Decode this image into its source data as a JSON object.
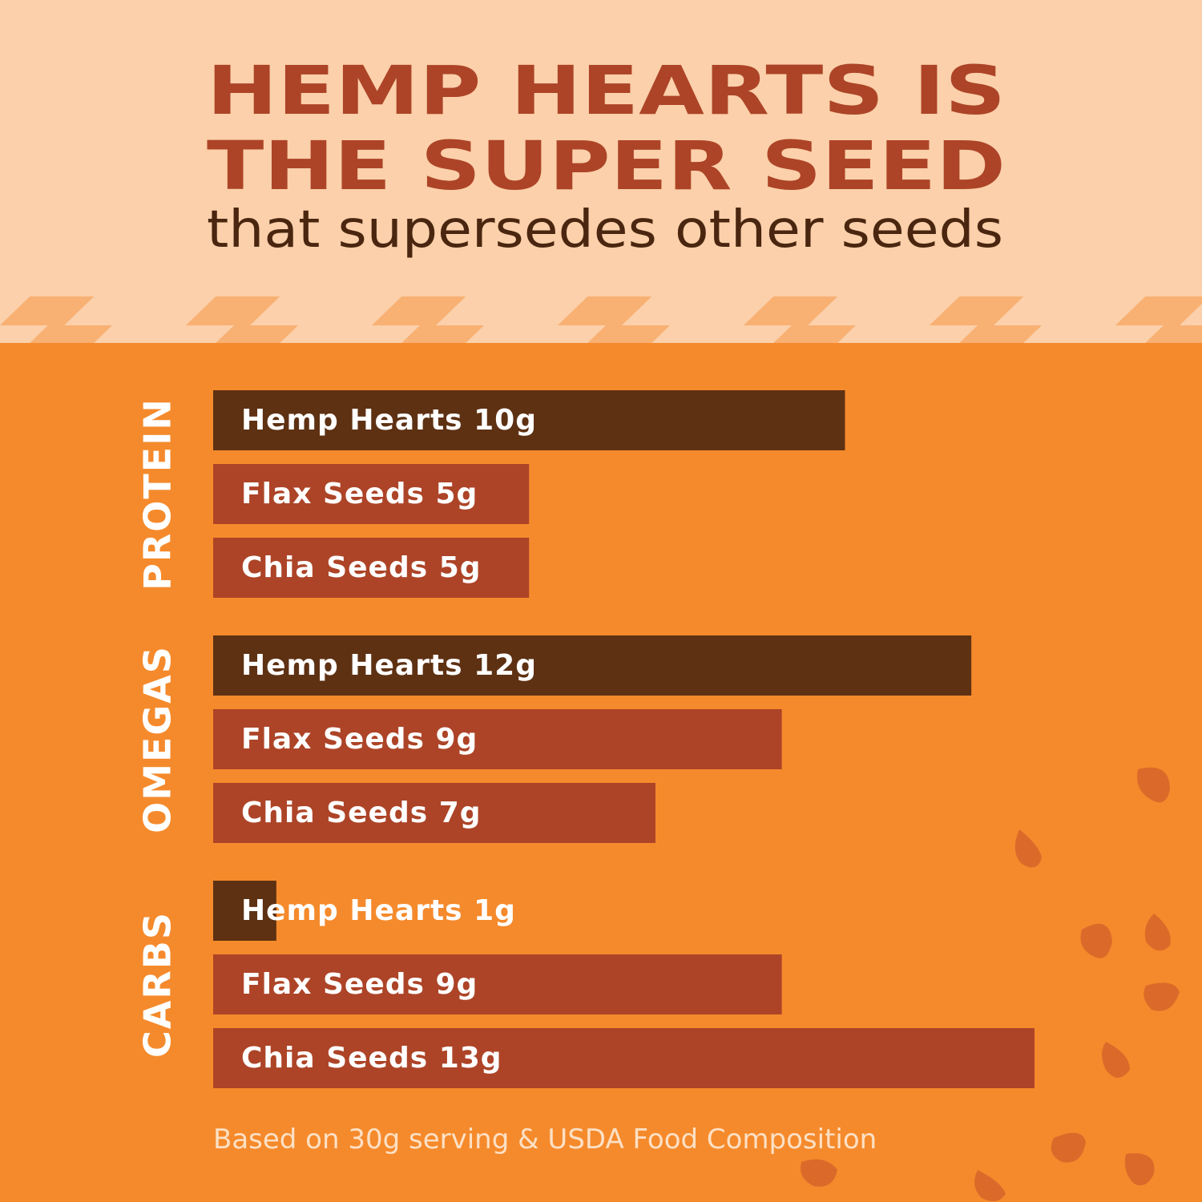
{
  "chart_data": {
    "type": "bar",
    "orientation": "horizontal",
    "title": [
      "HEMP HEARTS IS",
      "THE SUPER SEED"
    ],
    "subtitle": "that supersedes other seeds",
    "note": "Based on 30g serving & USDA Food Composition",
    "xlim": [
      0,
      13
    ],
    "groups": [
      {
        "name": "PROTEIN",
        "values": [
          10,
          5,
          5
        ],
        "value_labels": [
          "Hemp Hearts 10g",
          "Flax Seeds 5g",
          "Chia Seeds 5g"
        ],
        "colors": [
          "#5e3113",
          "#ad4427",
          "#ad4427"
        ]
      },
      {
        "name": "OMEGAS",
        "values": [
          12,
          9,
          7
        ],
        "value_labels": [
          "Hemp Hearts 12g",
          "Flax Seeds 9g",
          "Chia Seeds 7g"
        ],
        "colors": [
          "#5e3113",
          "#ad4427",
          "#ad4427"
        ]
      },
      {
        "name": "CARBS",
        "values": [
          1,
          9,
          13
        ],
        "value_labels": [
          "Hemp Hearts 1g",
          "Flax Seeds 9g",
          "Chia Seeds 13g"
        ],
        "colors": [
          "#5e3113",
          "#ad4427",
          "#ad4427"
        ]
      }
    ]
  }
}
